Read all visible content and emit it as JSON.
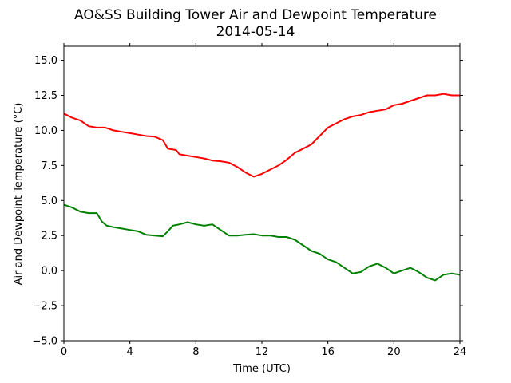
{
  "chart_data": {
    "type": "line",
    "title": "AO&SS Building Tower Air and Dewpoint Temperature",
    "subtitle": "2014-05-14",
    "xlabel": "Time (UTC)",
    "ylabel": "Air and Dewpoint Temperature (°C)",
    "xlim": [
      0,
      24
    ],
    "ylim": [
      -5.0,
      16.0
    ],
    "x_ticks": [
      "0",
      "4",
      "8",
      "12",
      "16",
      "20",
      "24"
    ],
    "y_ticks": [
      "−5.0",
      "−2.5",
      "0.0",
      "2.5",
      "5.0",
      "7.5",
      "10.0",
      "12.5",
      "15.0"
    ],
    "grid": false,
    "series": [
      {
        "color": "#ff0000",
        "x": [
          0,
          0.5,
          1,
          1.5,
          2,
          2.5,
          3,
          3.5,
          4,
          4.5,
          5,
          5.5,
          6,
          6.3,
          6.8,
          7,
          7.5,
          8,
          8.5,
          9,
          9.5,
          10,
          10.5,
          11,
          11.5,
          12,
          12.5,
          13,
          13.5,
          14,
          14.5,
          15,
          15.5,
          16,
          16.5,
          17,
          17.5,
          18,
          18.5,
          19,
          19.5,
          20,
          20.5,
          21,
          21.5,
          22,
          22.5,
          23,
          23.5,
          24
        ],
        "values": [
          11.2,
          10.9,
          10.7,
          10.3,
          10.2,
          10.2,
          10.0,
          9.9,
          9.8,
          9.7,
          9.6,
          9.55,
          9.3,
          8.7,
          8.6,
          8.3,
          8.2,
          8.1,
          8.0,
          7.85,
          7.8,
          7.7,
          7.4,
          7.0,
          6.7,
          6.9,
          7.2,
          7.5,
          7.9,
          8.4,
          8.7,
          9.0,
          9.6,
          10.2,
          10.5,
          10.8,
          11.0,
          11.1,
          11.3,
          11.4,
          11.5,
          11.8,
          11.9,
          12.1,
          12.3,
          12.5,
          12.5,
          12.6,
          12.5,
          12.5
        ]
      },
      {
        "color": "#008000",
        "x": [
          0,
          0.5,
          1,
          1.5,
          2,
          2.3,
          2.6,
          3,
          3.5,
          4,
          4.5,
          5,
          5.5,
          6,
          6.3,
          6.6,
          7,
          7.5,
          8,
          8.5,
          9,
          9.5,
          10,
          10.5,
          11,
          11.5,
          12,
          12.5,
          13,
          13.5,
          14,
          14.5,
          15,
          15.5,
          16,
          16.5,
          17,
          17.5,
          18,
          18.5,
          19,
          19.5,
          20,
          20.5,
          21,
          21.5,
          22,
          22.5,
          23,
          23.5,
          24
        ],
        "values": [
          4.7,
          4.5,
          4.2,
          4.1,
          4.1,
          3.5,
          3.2,
          3.1,
          3.0,
          2.9,
          2.8,
          2.55,
          2.5,
          2.45,
          2.8,
          3.2,
          3.3,
          3.45,
          3.3,
          3.2,
          3.3,
          2.9,
          2.5,
          2.5,
          2.55,
          2.6,
          2.5,
          2.5,
          2.4,
          2.4,
          2.2,
          1.8,
          1.4,
          1.2,
          0.8,
          0.6,
          0.2,
          -0.2,
          -0.1,
          0.3,
          0.5,
          0.2,
          -0.2,
          0.0,
          0.2,
          -0.1,
          -0.5,
          -0.7,
          -0.3,
          -0.2,
          -0.3
        ]
      }
    ]
  }
}
